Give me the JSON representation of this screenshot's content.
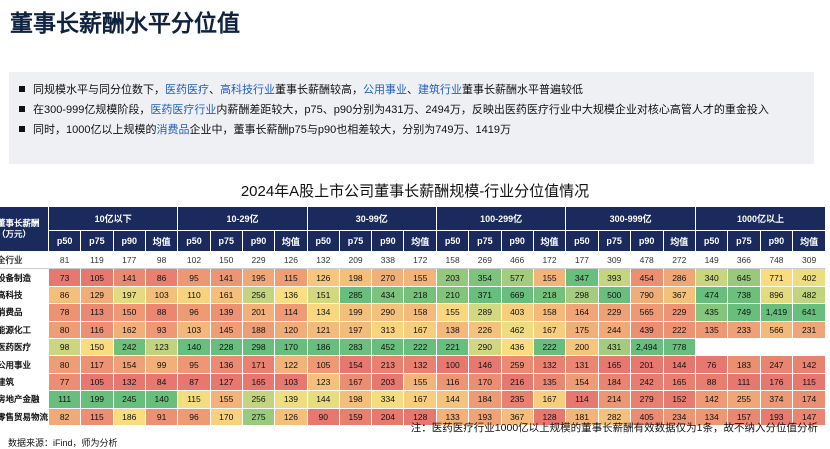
{
  "title": "董事长薪酬水平分位值",
  "bullets": [
    {
      "parts": [
        {
          "t": "同规模水平与同分位数下，",
          "hl": false
        },
        {
          "t": "医药医疗",
          "hl": true
        },
        {
          "t": "、",
          "hl": false
        },
        {
          "t": "高科技行业",
          "hl": true
        },
        {
          "t": "董事长薪酬较高，",
          "hl": false
        },
        {
          "t": "公用事业",
          "hl": true
        },
        {
          "t": "、",
          "hl": false
        },
        {
          "t": "建筑行业",
          "hl": true
        },
        {
          "t": "董事长薪酬水平普遍较低",
          "hl": false
        }
      ]
    },
    {
      "parts": [
        {
          "t": "在300-999亿规模阶段，",
          "hl": false
        },
        {
          "t": "医药医疗行业",
          "hl": true
        },
        {
          "t": "内薪酬差距较大，p75、p90分别为431万、2494万，反映出医药医疗行业中大规模企业对核心高管人才的重金投入",
          "hl": false
        }
      ]
    },
    {
      "parts": [
        {
          "t": "同时，1000亿以上规模的",
          "hl": false
        },
        {
          "t": "消费品",
          "hl": true
        },
        {
          "t": "企业中，董事长薪酬p75与p90也相差较大，分别为749万、1419万",
          "hl": false
        }
      ]
    }
  ],
  "table_title": "2024年A股上市公司董事长薪酬规模-行业分位值情况",
  "table": {
    "corner_label": "董事长薪酬（万元）",
    "groups": [
      "10亿以下",
      "10-29亿",
      "30-99亿",
      "100-299亿",
      "300-999亿",
      "1000亿以上"
    ],
    "sub_headers": [
      "p50",
      "p75",
      "p90",
      "均值"
    ],
    "rows": [
      {
        "label": "全行业",
        "all": true,
        "values": [
          "81",
          "119",
          "177",
          "98",
          "102",
          "150",
          "229",
          "126",
          "132",
          "209",
          "338",
          "172",
          "158",
          "269",
          "466",
          "172",
          "177",
          "309",
          "478",
          "272",
          "149",
          "366",
          "748",
          "309"
        ]
      },
      {
        "label": "设备制造",
        "values": [
          "73",
          "105",
          "141",
          "86",
          "95",
          "141",
          "195",
          "115",
          "126",
          "198",
          "270",
          "155",
          "203",
          "354",
          "577",
          "155",
          "347",
          "393",
          "454",
          "286",
          "340",
          "645",
          "771",
          "402"
        ]
      },
      {
        "label": "高科技",
        "values": [
          "86",
          "129",
          "197",
          "103",
          "110",
          "161",
          "256",
          "136",
          "151",
          "285",
          "434",
          "218",
          "210",
          "371",
          "669",
          "218",
          "298",
          "500",
          "790",
          "367",
          "474",
          "738",
          "896",
          "482"
        ]
      },
      {
        "label": "消费品",
        "values": [
          "78",
          "113",
          "150",
          "88",
          "96",
          "139",
          "201",
          "114",
          "134",
          "199",
          "290",
          "158",
          "155",
          "289",
          "403",
          "158",
          "164",
          "229",
          "565",
          "229",
          "435",
          "749",
          "1,419",
          "641"
        ]
      },
      {
        "label": "能源化工",
        "values": [
          "80",
          "116",
          "162",
          "93",
          "103",
          "145",
          "188",
          "120",
          "121",
          "197",
          "313",
          "167",
          "138",
          "226",
          "462",
          "167",
          "175",
          "244",
          "439",
          "222",
          "135",
          "233",
          "566",
          "231"
        ]
      },
      {
        "label": "医药医疗",
        "values": [
          "98",
          "150",
          "242",
          "123",
          "140",
          "228",
          "298",
          "170",
          "186",
          "283",
          "452",
          "222",
          "221",
          "290",
          "436",
          "222",
          "200",
          "431",
          "2,494",
          "778",
          "",
          "",
          "",
          ""
        ]
      },
      {
        "label": "公用事业",
        "values": [
          "80",
          "117",
          "154",
          "99",
          "95",
          "136",
          "171",
          "122",
          "105",
          "154",
          "213",
          "132",
          "100",
          "146",
          "259",
          "132",
          "131",
          "165",
          "201",
          "144",
          "76",
          "183",
          "247",
          "142"
        ]
      },
      {
        "label": "建筑",
        "values": [
          "77",
          "105",
          "132",
          "84",
          "87",
          "127",
          "165",
          "103",
          "123",
          "167",
          "203",
          "155",
          "116",
          "170",
          "216",
          "135",
          "154",
          "184",
          "242",
          "165",
          "88",
          "111",
          "176",
          "115"
        ]
      },
      {
        "label": "房地产金融",
        "values": [
          "111",
          "199",
          "245",
          "140",
          "115",
          "155",
          "256",
          "139",
          "144",
          "198",
          "334",
          "167",
          "144",
          "184",
          "235",
          "167",
          "114",
          "214",
          "279",
          "152",
          "142",
          "255",
          "374",
          "174"
        ]
      },
      {
        "label": "零售贸易物流",
        "values": [
          "82",
          "115",
          "186",
          "91",
          "96",
          "170",
          "275",
          "126",
          "90",
          "159",
          "204",
          "128",
          "133",
          "193",
          "367",
          "128",
          "181",
          "282",
          "405",
          "234",
          "134",
          "157",
          "193",
          "147"
        ]
      }
    ]
  },
  "note": "注：医药医疗行业1000亿以上规模的董事长薪酬有效数据仅为1条，故不纳入分位值分析",
  "source": "数据来源：iFind，师为分析",
  "colors": {
    "header_bg": "#1a2a5c",
    "highlight_text": "#1f5fc0",
    "title": "#0f2240",
    "summary_bg": "#eef0f4"
  }
}
